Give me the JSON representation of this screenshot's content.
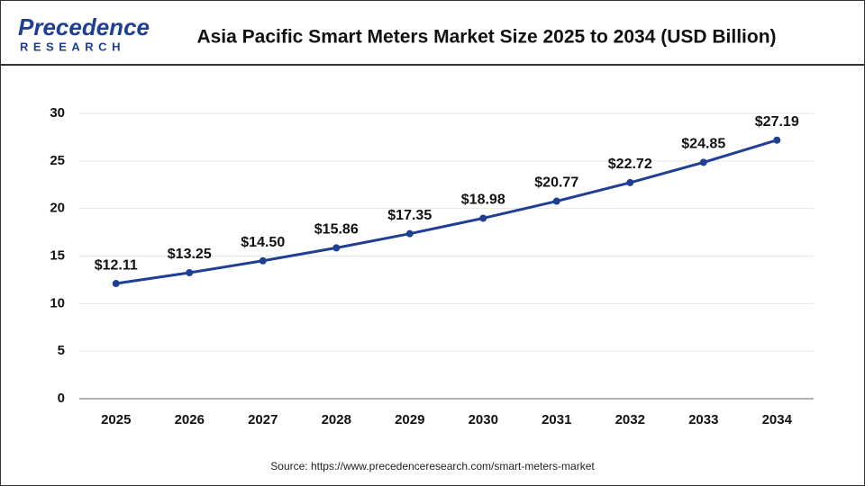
{
  "logo": {
    "name": "Precedence",
    "sub": "RESEARCH"
  },
  "chart_data": {
    "type": "line",
    "title": "Asia Pacific Smart Meters Market Size 2025 to 2034 (USD Billion)",
    "categories": [
      "2025",
      "2026",
      "2027",
      "2028",
      "2029",
      "2030",
      "2031",
      "2032",
      "2033",
      "2034"
    ],
    "values": [
      12.11,
      13.25,
      14.5,
      15.86,
      17.35,
      18.98,
      20.77,
      22.72,
      24.85,
      27.19
    ],
    "value_labels": [
      "$12.11",
      "$13.25",
      "$14.50",
      "$15.86",
      "$17.35",
      "$18.98",
      "$20.77",
      "$22.72",
      "$24.85",
      "$27.19"
    ],
    "color": "#1f3f94",
    "ylim": [
      0,
      30
    ],
    "yticks": [
      0,
      5,
      10,
      15,
      20,
      25,
      30
    ],
    "grid": true
  },
  "source": "Source:  https://www.precedenceresearch.com/smart-meters-market"
}
